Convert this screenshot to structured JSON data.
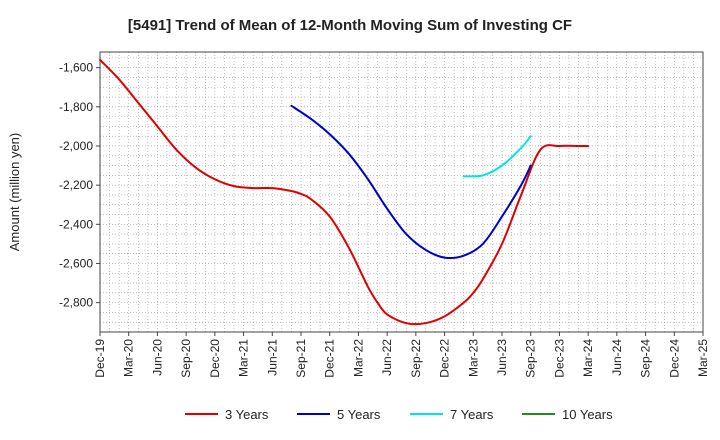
{
  "chart_data": {
    "type": "line",
    "title": "[5491]  Trend of Mean of 12-Month Moving Sum of Investing CF",
    "xlabel": "",
    "ylabel": "Amount (million yen)",
    "ylim": [
      -2950,
      -1520
    ],
    "yticks": [
      -1600,
      -1800,
      -2000,
      -2200,
      -2400,
      -2600,
      -2800
    ],
    "ytick_labels": [
      "-1,600",
      "-1,800",
      "-2,000",
      "-2,200",
      "-2,400",
      "-2,600",
      "-2,800"
    ],
    "x_range_months": [
      0,
      63
    ],
    "xtick_labels": [
      "Dec-19",
      "Mar-20",
      "Jun-20",
      "Sep-20",
      "Dec-20",
      "Mar-21",
      "Jun-21",
      "Sep-21",
      "Dec-21",
      "Mar-22",
      "Jun-22",
      "Sep-22",
      "Dec-22",
      "Mar-23",
      "Jun-23",
      "Sep-23",
      "Dec-23",
      "Mar-24",
      "Jun-24",
      "Sep-24",
      "Dec-24",
      "Mar-25"
    ],
    "grid": true,
    "legend_position": "bottom",
    "series": [
      {
        "name": "3 Years",
        "color": "#e00000",
        "x": [
          0,
          2,
          4,
          6,
          8,
          10,
          12,
          14,
          16,
          18,
          20,
          21,
          22,
          24,
          26,
          28,
          29,
          30,
          32,
          34,
          36,
          38,
          39,
          40,
          42,
          44,
          46,
          48,
          50,
          51
        ],
        "values": [
          -1560,
          -1660,
          -1780,
          -1900,
          -2020,
          -2110,
          -2170,
          -2205,
          -2215,
          -2215,
          -2230,
          -2245,
          -2270,
          -2360,
          -2520,
          -2720,
          -2800,
          -2860,
          -2905,
          -2905,
          -2870,
          -2800,
          -2750,
          -2680,
          -2500,
          -2250,
          -2020,
          -2000,
          -2000,
          -2000
        ]
      },
      {
        "name": "5 Years",
        "color": "#0000cc",
        "x": [
          20,
          22,
          24,
          26,
          28,
          30,
          32,
          34,
          36,
          38,
          40,
          42,
          44,
          45
        ],
        "values": [
          -1795,
          -1860,
          -1940,
          -2040,
          -2170,
          -2320,
          -2450,
          -2530,
          -2570,
          -2560,
          -2500,
          -2360,
          -2200,
          -2100
        ]
      },
      {
        "name": "7 Years",
        "color": "#00e5e5",
        "x": [
          38,
          40,
          42,
          44,
          45
        ],
        "values": [
          -2155,
          -2150,
          -2100,
          -2010,
          -1950
        ]
      },
      {
        "name": "10 Years",
        "color": "#228b22",
        "x": [],
        "values": []
      }
    ]
  }
}
